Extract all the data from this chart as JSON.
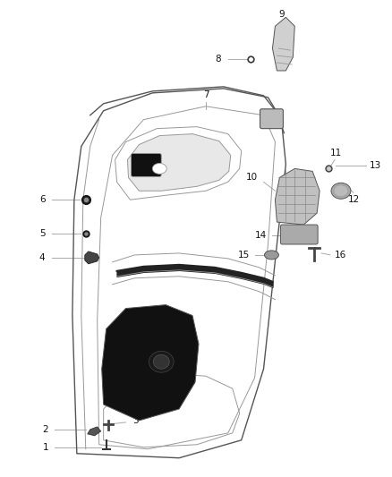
{
  "background_color": "#ffffff",
  "fig_width": 4.38,
  "fig_height": 5.33,
  "dpi": 100,
  "gray": "#555555",
  "lgray": "#999999",
  "llgray": "#cccccc",
  "leader_color": "#aaaaaa",
  "lw_main": 1.0,
  "lw_inner": 0.7,
  "lw_leader": 0.7
}
